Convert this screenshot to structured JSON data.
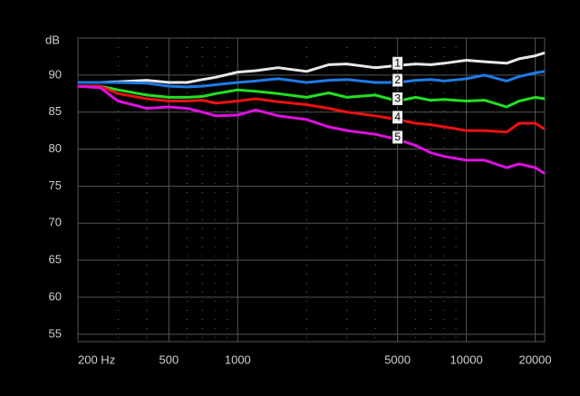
{
  "chart_data": {
    "type": "line",
    "y_label": "dB",
    "log_x": true,
    "grid": true,
    "x": [
      200,
      250,
      300,
      400,
      500,
      600,
      700,
      800,
      1000,
      1200,
      1500,
      2000,
      2500,
      3000,
      4000,
      5000,
      6000,
      7000,
      8000,
      10000,
      12000,
      15000,
      17000,
      20000,
      22000
    ],
    "series": [
      {
        "name": "1",
        "color": "#e8e8e8",
        "values": [
          89,
          89,
          89.1,
          89.3,
          89,
          89,
          89.4,
          89.7,
          90.4,
          90.6,
          91,
          90.5,
          91.4,
          91.5,
          91,
          91.3,
          91.5,
          91.4,
          91.6,
          92,
          91.8,
          91.6,
          92.2,
          92.6,
          93
        ]
      },
      {
        "name": "2",
        "color": "#1e7be6",
        "values": [
          89,
          89,
          89,
          88.9,
          88.5,
          88.4,
          88.5,
          88.7,
          89,
          89.2,
          89.5,
          89,
          89.3,
          89.4,
          89,
          89,
          89.3,
          89.4,
          89.2,
          89.5,
          90,
          89.2,
          89.8,
          90.3,
          90.5
        ]
      },
      {
        "name": "3",
        "color": "#22e022",
        "values": [
          88.5,
          88.5,
          88,
          87.3,
          87,
          87,
          87.1,
          87.5,
          88,
          87.8,
          87.5,
          87,
          87.6,
          87,
          87.3,
          86.5,
          87,
          86.6,
          86.7,
          86.5,
          86.6,
          85.7,
          86.5,
          87,
          86.8
        ]
      },
      {
        "name": "4",
        "color": "#ee1111",
        "values": [
          88.5,
          88.5,
          87.5,
          86.8,
          86.5,
          86.5,
          86.6,
          86.2,
          86.5,
          86.8,
          86.4,
          86,
          85.5,
          85,
          84.5,
          84,
          83.5,
          83.3,
          83,
          82.5,
          82.5,
          82.3,
          83.5,
          83.5,
          82.7
        ]
      },
      {
        "name": "5",
        "color": "#e010e0",
        "values": [
          88.5,
          88.3,
          86.5,
          85.5,
          85.7,
          85.5,
          85,
          84.5,
          84.6,
          85.3,
          84.5,
          84,
          83,
          82.5,
          82,
          81.3,
          80.5,
          79.5,
          79,
          78.5,
          78.5,
          77.5,
          78,
          77.5,
          76.7
        ]
      }
    ],
    "xlim": [
      200,
      22000
    ],
    "xticks": [
      {
        "value": 200,
        "label": "200 Hz"
      },
      500,
      1000,
      5000,
      10000,
      20000
    ],
    "xminorticks": [
      300,
      400,
      600,
      700,
      800,
      900,
      2000,
      3000,
      4000,
      6000,
      7000,
      8000,
      9000
    ],
    "ylim": [
      54,
      95
    ],
    "yticks": [
      55,
      60,
      65,
      70,
      75,
      80,
      85,
      90
    ]
  }
}
